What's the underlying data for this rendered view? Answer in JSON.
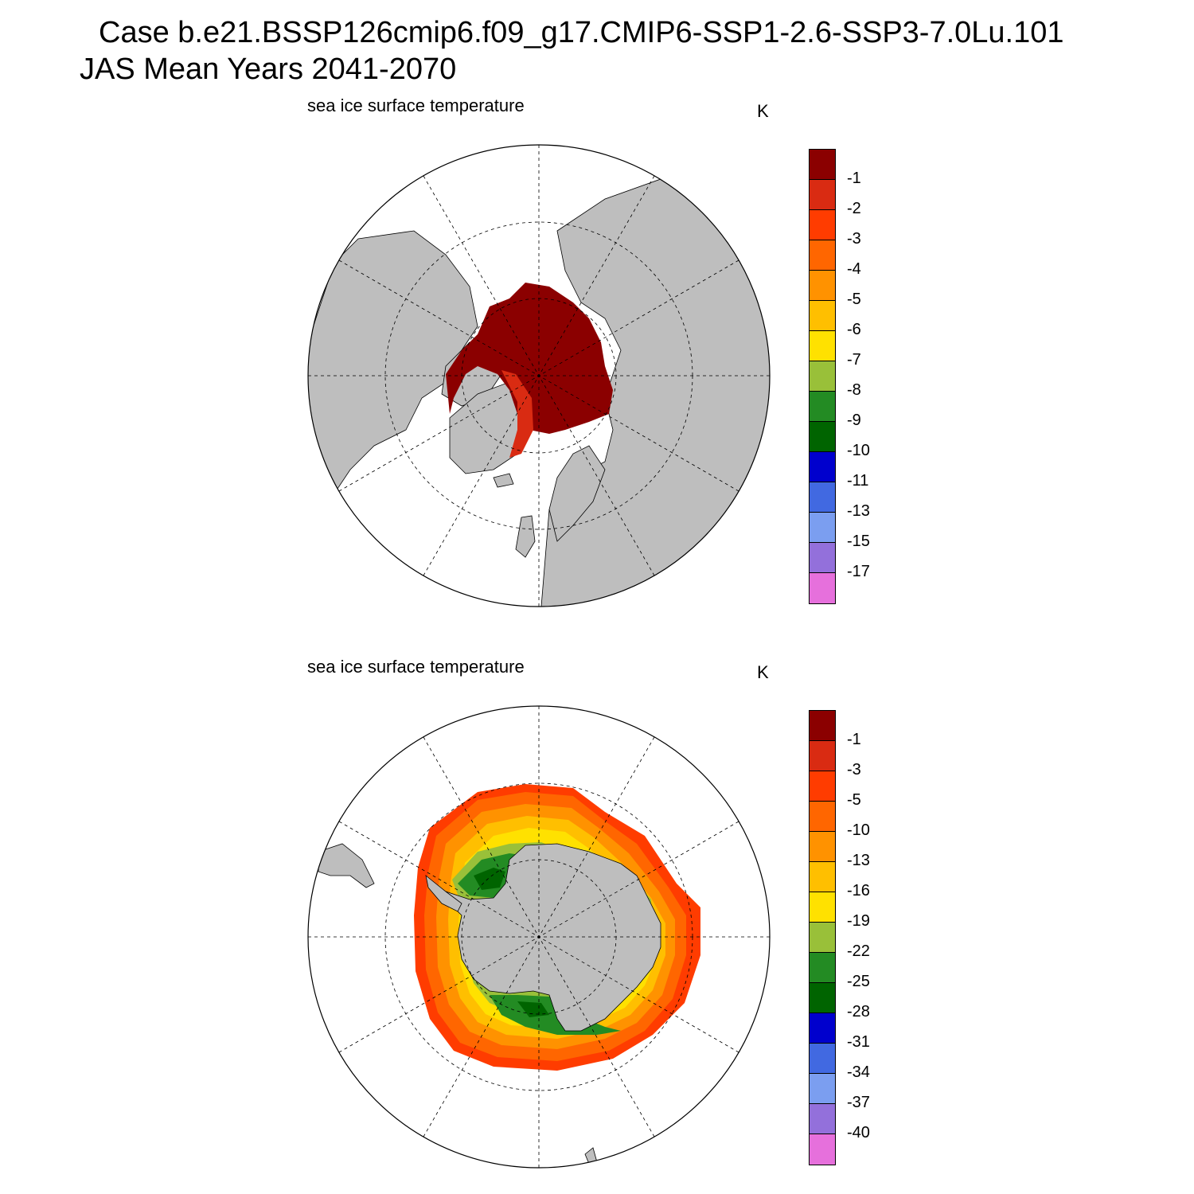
{
  "header": {
    "title_line1": "Case b.e21.BSSP126cmip6.f09_g17.CMIP6-SSP1-2.6-SSP3-7.0Lu.101",
    "title_line2": "JAS Mean   Years 2041-2070"
  },
  "panels": [
    {
      "id": "north",
      "hemisphere": "Northern",
      "title": "sea ice surface temperature",
      "units": "K",
      "colorbar": {
        "colors": [
          "#8b0000",
          "#d92b12",
          "#ff3c00",
          "#ff6600",
          "#ff9200",
          "#ffbf00",
          "#ffe100",
          "#99c039",
          "#238b23",
          "#006400",
          "#0000cd",
          "#4169e1",
          "#7b9ef0",
          "#9370db",
          "#e670dc"
        ],
        "levels": [
          "-1",
          "-2",
          "-3",
          "-4",
          "-5",
          "-6",
          "-7",
          "-8",
          "-9",
          "-10",
          "-11",
          "-13",
          "-15",
          "-17"
        ]
      }
    },
    {
      "id": "south",
      "hemisphere": "Southern",
      "title": "sea ice surface temperature",
      "units": "K",
      "colorbar": {
        "colors": [
          "#8b0000",
          "#d92b12",
          "#ff3c00",
          "#ff6600",
          "#ff9200",
          "#ffbf00",
          "#ffe100",
          "#99c039",
          "#238b23",
          "#006400",
          "#0000cd",
          "#4169e1",
          "#7b9ef0",
          "#9370db",
          "#e670dc"
        ],
        "levels": [
          "-1",
          "-3",
          "-5",
          "-10",
          "-13",
          "-16",
          "-19",
          "-22",
          "-25",
          "-28",
          "-31",
          "-34",
          "-37",
          "-40"
        ]
      }
    }
  ],
  "colors": {
    "land": "#bebebe",
    "ocean": "#ffffff",
    "grid": "#000000"
  }
}
